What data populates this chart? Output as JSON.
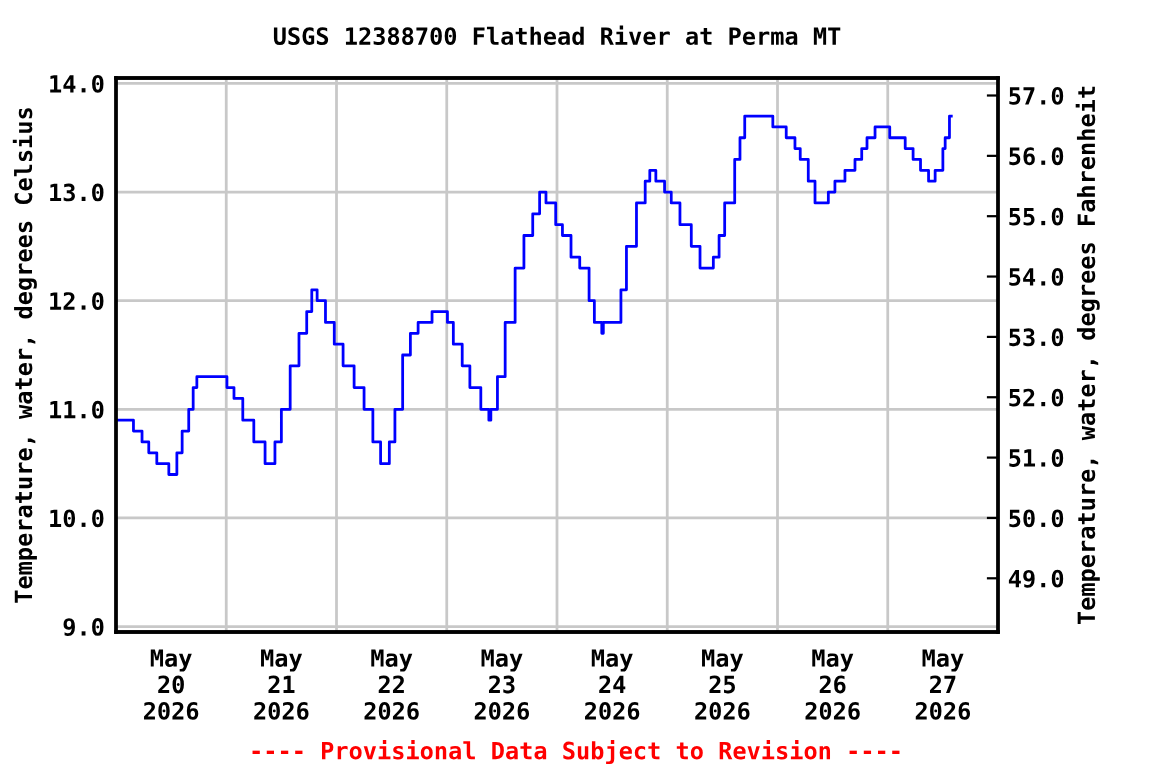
{
  "chart_data": {
    "type": "step",
    "title": "USGS 12388700 Flathead River at Perma MT",
    "ylabel": "Temperature, water, degrees Celsius",
    "y2label": "Temperature, water, degrees Fahrenheit",
    "annotations": [
      "---- Provisional Data Subject to Revision ----"
    ],
    "x": [
      "2026-05-20T00:00",
      "2026-05-20T03:48",
      "2026-05-20T05:40",
      "2026-05-20T07:08",
      "2026-05-20T08:53",
      "2026-05-20T11:30",
      "2026-05-20T13:15",
      "2026-05-20T14:24",
      "2026-05-20T15:50",
      "2026-05-20T16:48",
      "2026-05-20T17:36",
      "2026-05-21T00:09",
      "2026-05-21T01:41",
      "2026-05-21T03:36",
      "2026-05-21T06:00",
      "2026-05-21T08:27",
      "2026-05-21T10:36",
      "2026-05-21T12:00",
      "2026-05-21T13:55",
      "2026-05-21T15:50",
      "2026-05-21T17:31",
      "2026-05-21T18:37",
      "2026-05-21T19:47",
      "2026-05-21T21:36",
      "2026-05-21T23:31",
      "2026-05-22T01:26",
      "2026-05-22T03:50",
      "2026-05-22T06:00",
      "2026-05-22T07:55",
      "2026-05-22T09:36",
      "2026-05-22T11:30",
      "2026-05-22T12:43",
      "2026-05-22T14:24",
      "2026-05-22T16:05",
      "2026-05-22T17:46",
      "2026-05-22T20:48",
      "2026-05-23T00:09",
      "2026-05-23T01:26",
      "2026-05-23T03:22",
      "2026-05-23T05:02",
      "2026-05-23T07:25",
      "2026-05-23T09:10",
      "2026-05-23T09:36",
      "2026-05-23T11:02",
      "2026-05-23T12:43",
      "2026-05-23T14:53",
      "2026-05-23T16:48",
      "2026-05-23T18:43",
      "2026-05-23T20:13",
      "2026-05-23T21:36",
      "2026-05-23T23:43",
      "2026-05-24T01:11",
      "2026-05-24T03:03",
      "2026-05-24T04:57",
      "2026-05-24T06:59",
      "2026-05-24T08:08",
      "2026-05-24T09:45",
      "2026-05-24T10:05",
      "2026-05-24T13:55",
      "2026-05-24T15:07",
      "2026-05-24T17:18",
      "2026-05-24T19:12",
      "2026-05-24T20:12",
      "2026-05-24T21:31",
      "2026-05-24T23:25",
      "2026-05-25T00:52",
      "2026-05-25T02:46",
      "2026-05-25T05:14",
      "2026-05-25T07:08",
      "2026-05-25T10:02",
      "2026-05-25T11:17",
      "2026-05-25T12:30",
      "2026-05-25T14:41",
      "2026-05-25T15:50",
      "2026-05-25T16:52",
      "2026-05-25T22:59",
      "2026-05-26T01:54",
      "2026-05-26T03:48",
      "2026-05-26T04:57",
      "2026-05-26T06:42",
      "2026-05-26T08:10",
      "2026-05-26T11:04",
      "2026-05-26T12:30",
      "2026-05-26T14:41",
      "2026-05-26T16:52",
      "2026-05-26T18:20",
      "2026-05-26T19:29",
      "2026-05-26T21:14",
      "2026-05-27T00:26",
      "2026-05-27T03:48",
      "2026-05-27T05:31",
      "2026-05-27T07:08",
      "2026-05-27T08:53",
      "2026-05-27T10:19",
      "2026-05-27T12:00",
      "2026-05-27T12:30",
      "2026-05-27T13:26",
      "2026-05-27T13:50"
    ],
    "series": [
      {
        "color": "#0000ff",
        "values": [
          10.9,
          10.8,
          10.7,
          10.6,
          10.5,
          10.4,
          10.6,
          10.8,
          11.0,
          11.2,
          11.3,
          11.2,
          11.1,
          10.9,
          10.7,
          10.5,
          10.7,
          11.0,
          11.4,
          11.7,
          11.9,
          12.1,
          12.0,
          11.8,
          11.6,
          11.4,
          11.2,
          11.0,
          10.7,
          10.5,
          10.7,
          11.0,
          11.5,
          11.7,
          11.8,
          11.9,
          11.8,
          11.6,
          11.4,
          11.2,
          11.0,
          10.9,
          11.0,
          11.3,
          11.8,
          12.3,
          12.6,
          12.8,
          13.0,
          12.9,
          12.7,
          12.6,
          12.4,
          12.3,
          12.0,
          11.8,
          11.7,
          11.8,
          12.1,
          12.5,
          12.9,
          13.1,
          13.2,
          13.1,
          13.0,
          12.9,
          12.7,
          12.5,
          12.3,
          12.4,
          12.6,
          12.9,
          13.3,
          13.5,
          13.7,
          13.6,
          13.5,
          13.4,
          13.3,
          13.1,
          12.9,
          13.0,
          13.1,
          13.2,
          13.3,
          13.4,
          13.5,
          13.6,
          13.5,
          13.4,
          13.3,
          13.2,
          13.1,
          13.2,
          13.4,
          13.5,
          13.7,
          13.7
        ]
      }
    ],
    "xlim": [
      "2026-05-20T00:00",
      "2026-05-28T00:00"
    ],
    "xticks": [
      {
        "value": "2026-05-20T12:00",
        "label": "May\n20\n2026"
      },
      {
        "value": "2026-05-21T12:00",
        "label": "May\n21\n2026"
      },
      {
        "value": "2026-05-22T12:00",
        "label": "May\n22\n2026"
      },
      {
        "value": "2026-05-23T12:00",
        "label": "May\n23\n2026"
      },
      {
        "value": "2026-05-24T12:00",
        "label": "May\n24\n2026"
      },
      {
        "value": "2026-05-25T12:00",
        "label": "May\n25\n2026"
      },
      {
        "value": "2026-05-26T12:00",
        "label": "May\n26\n2026"
      },
      {
        "value": "2026-05-27T12:00",
        "label": "May\n27\n2026"
      },
      {
        "value": "2026-05-21T00:00",
        "label": null
      },
      {
        "value": "2026-05-22T00:00",
        "label": null
      },
      {
        "value": "2026-05-23T00:00",
        "label": null
      },
      {
        "value": "2026-05-24T00:00",
        "label": null
      },
      {
        "value": "2026-05-25T00:00",
        "label": null
      },
      {
        "value": "2026-05-26T00:00",
        "label": null
      },
      {
        "value": "2026-05-27T00:00",
        "label": null
      }
    ],
    "ylim": [
      8.95,
      14.05
    ],
    "yticks": [
      {
        "value": 9,
        "label": "9.0"
      },
      {
        "value": 10,
        "label": "10.0"
      },
      {
        "value": 11,
        "label": "11.0"
      },
      {
        "value": 12,
        "label": "12.0"
      },
      {
        "value": 13,
        "label": "13.0"
      },
      {
        "value": 14,
        "label": "14.0"
      }
    ],
    "y2lim": [
      48.11,
      57.29
    ],
    "y2ticks": [
      {
        "value": 49,
        "label": "49.0"
      },
      {
        "value": 50,
        "label": "50.0"
      },
      {
        "value": 51,
        "label": "51.0"
      },
      {
        "value": 52,
        "label": "52.0"
      },
      {
        "value": 53,
        "label": "53.0"
      },
      {
        "value": 54,
        "label": "54.0"
      },
      {
        "value": 55,
        "label": "55.0"
      },
      {
        "value": 56,
        "label": "56.0"
      },
      {
        "value": 57,
        "label": "57.0"
      }
    ],
    "grid": true,
    "legend": false
  }
}
